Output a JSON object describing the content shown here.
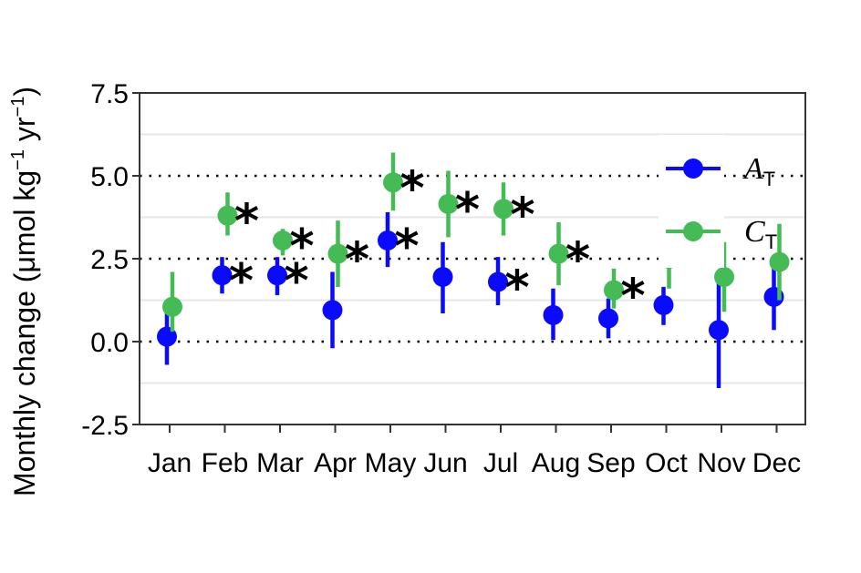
{
  "chart_data": {
    "type": "scatter",
    "ylabel_parts": {
      "prefix": "Monthly change (",
      "mu": "μ",
      "mid": "mol kg",
      "sup1": "−1",
      "yr": " yr",
      "sup2": "−1",
      "suffix": ")"
    },
    "categories": [
      "Jan",
      "Feb",
      "Mar",
      "Apr",
      "May",
      "Jun",
      "Jul",
      "Aug",
      "Sep",
      "Oct",
      "Nov",
      "Dec"
    ],
    "ylim": [
      -2.5,
      7.5
    ],
    "yticks": [
      "-2.5",
      "0.0",
      "2.5",
      "5.0",
      "7.5"
    ],
    "ytick_values": [
      -2.5,
      0.0,
      2.5,
      5.0,
      7.5
    ],
    "dotted_lines": [
      0.0,
      2.5,
      5.0
    ],
    "grid_lines": [
      -1.25,
      1.25,
      3.75,
      6.25
    ],
    "legend_placement": "right",
    "significance_marker": "*",
    "series": [
      {
        "name_main": "A",
        "name_sub": "T",
        "color": "#0a0aff",
        "values": [
          0.15,
          2.0,
          2.0,
          0.95,
          3.05,
          1.95,
          1.8,
          0.8,
          0.7,
          1.1,
          0.35,
          1.35
        ],
        "err_low": [
          -0.7,
          1.45,
          1.4,
          -0.2,
          2.25,
          0.85,
          1.1,
          0.05,
          0.1,
          0.5,
          -1.4,
          0.35
        ],
        "err_high": [
          1.0,
          2.55,
          2.55,
          2.1,
          3.9,
          3.0,
          2.55,
          1.6,
          1.3,
          1.65,
          2.05,
          2.35
        ],
        "significant": [
          false,
          true,
          true,
          false,
          true,
          false,
          true,
          false,
          false,
          false,
          false,
          false
        ]
      },
      {
        "name_main": "C",
        "name_sub": "T",
        "color": "#44bb55",
        "values": [
          1.05,
          3.8,
          3.05,
          2.65,
          4.8,
          4.15,
          4.0,
          2.65,
          1.55,
          2.5,
          1.95,
          2.4
        ],
        "err_low": [
          0.3,
          3.2,
          2.6,
          1.65,
          3.95,
          3.15,
          3.2,
          1.7,
          1.0,
          1.6,
          0.9,
          1.25
        ],
        "err_high": [
          2.1,
          4.5,
          3.4,
          3.65,
          5.7,
          5.15,
          4.8,
          3.6,
          2.2,
          3.4,
          3.0,
          3.55
        ],
        "significant": [
          false,
          true,
          true,
          true,
          true,
          true,
          true,
          true,
          true,
          false,
          false,
          false
        ]
      }
    ]
  }
}
